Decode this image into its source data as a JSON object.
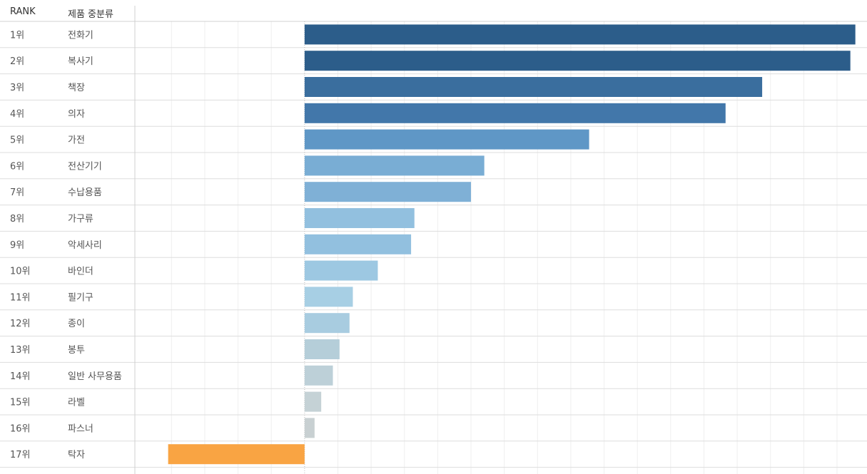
{
  "header": {
    "rank_label": "RANK",
    "category_label": "제품 중분류"
  },
  "chart_data": {
    "type": "bar",
    "orientation": "horizontal",
    "rank_labels": [
      "1위",
      "2위",
      "3위",
      "4위",
      "5위",
      "6위",
      "7위",
      "8위",
      "9위",
      "10위",
      "11위",
      "12위",
      "13위",
      "14위",
      "15위",
      "16위",
      "17위"
    ],
    "categories": [
      "전화기",
      "복사기",
      "책장",
      "의자",
      "가전",
      "전산기기",
      "수납용품",
      "가구류",
      "악세사리",
      "바인더",
      "필기구",
      "종이",
      "봉투",
      "일반 사무용품",
      "라벨",
      "파스너",
      "탁자"
    ],
    "values": [
      331,
      328,
      275,
      253,
      171,
      108,
      100,
      66,
      64,
      44,
      29,
      27,
      21,
      17,
      10,
      6,
      -82
    ],
    "xlim": [
      -102,
      338
    ],
    "grid": "vertical",
    "legend": "none",
    "colors": [
      "#2c5d8a",
      "#2c5d8a",
      "#3a6e9e",
      "#4277aa",
      "#5f97c6",
      "#79add4",
      "#7fb0d6",
      "#92c0df",
      "#92c0df",
      "#9dc8e2",
      "#a7cfe4",
      "#a8cce0",
      "#b5ced9",
      "#bdd0d8",
      "#c5d2d6",
      "#c8d0d2",
      "#f9a443"
    ]
  }
}
